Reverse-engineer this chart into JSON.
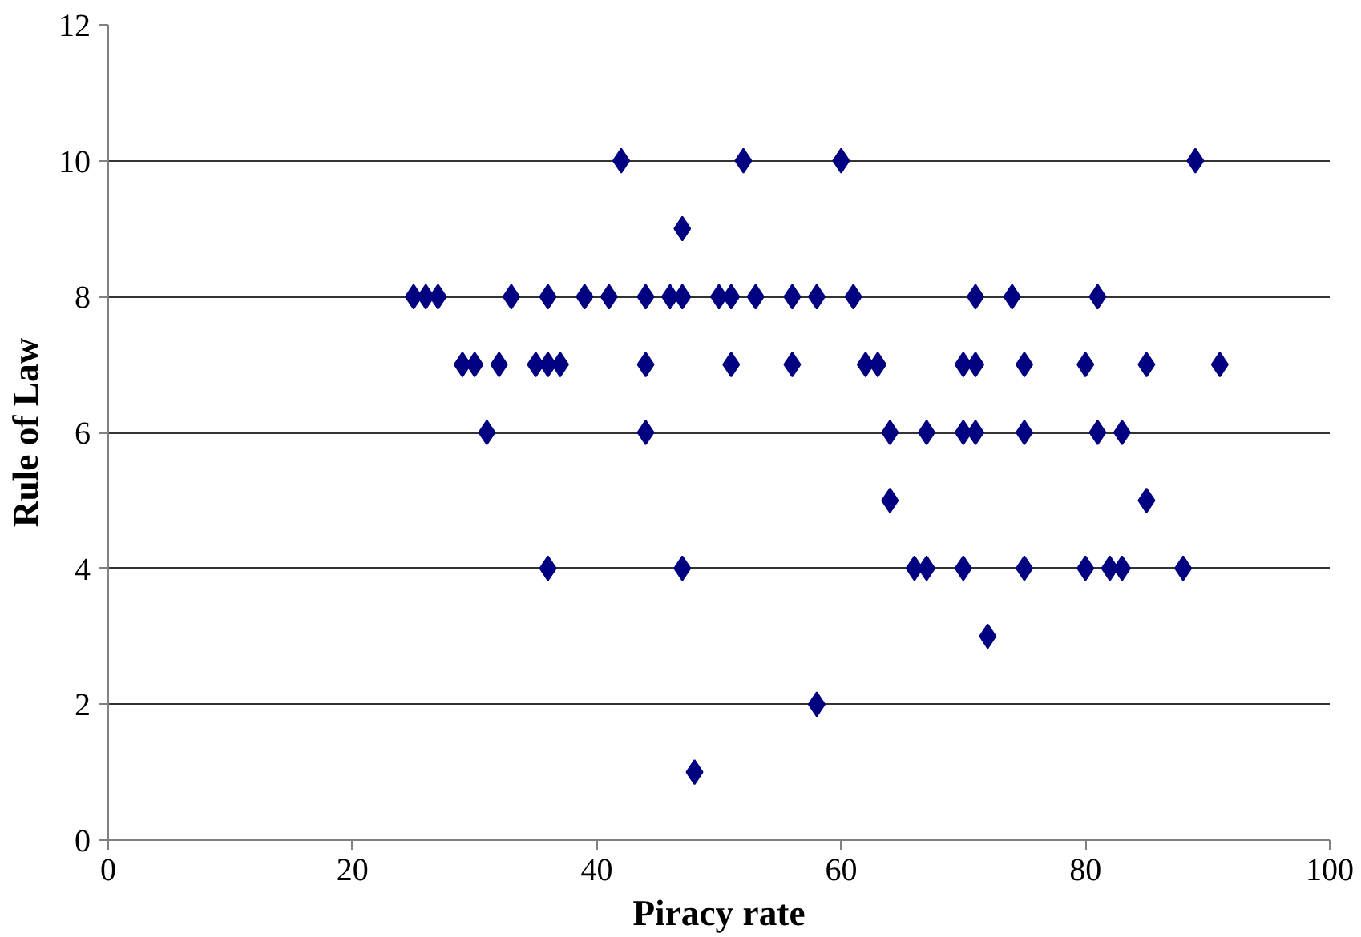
{
  "chart_data": {
    "type": "scatter",
    "xlabel": "Piracy rate",
    "ylabel": "Rule of Law",
    "series": [
      {
        "color": "#000080",
        "x": [
          42,
          52,
          60,
          89,
          47,
          25,
          26,
          27,
          33,
          36,
          39,
          41,
          44,
          46,
          47,
          50,
          51,
          53,
          56,
          58,
          61,
          71,
          74,
          81,
          29,
          30,
          32,
          35,
          36,
          37,
          44,
          51,
          56,
          62,
          63,
          70,
          71,
          75,
          80,
          85,
          91,
          31,
          44,
          64,
          67,
          70,
          71,
          75,
          81,
          83,
          64,
          85,
          36,
          47,
          66,
          67,
          70,
          75,
          80,
          82,
          83,
          88,
          72,
          58,
          48
        ],
        "values": [
          10,
          10,
          10,
          10,
          9,
          8,
          8,
          8,
          8,
          8,
          8,
          8,
          8,
          8,
          8,
          8,
          8,
          8,
          8,
          8,
          8,
          8,
          8,
          8,
          7,
          7,
          7,
          7,
          7,
          7,
          7,
          7,
          7,
          7,
          7,
          7,
          7,
          7,
          7,
          7,
          7,
          6,
          6,
          6,
          6,
          6,
          6,
          6,
          6,
          6,
          5,
          5,
          4,
          4,
          4,
          4,
          4,
          4,
          4,
          4,
          4,
          4,
          3,
          2,
          1
        ]
      }
    ],
    "marker": "diamond",
    "xlim": [
      0,
      100
    ],
    "ylim": [
      0,
      12
    ],
    "xticks": [
      0,
      20,
      40,
      60,
      80,
      100
    ],
    "yticks": [
      0,
      2,
      4,
      6,
      8,
      10,
      12
    ],
    "grid": "y"
  }
}
